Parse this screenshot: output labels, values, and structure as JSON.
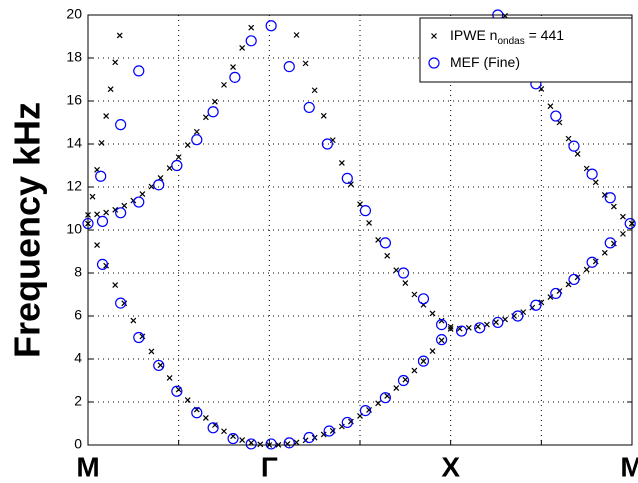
{
  "chart_data": {
    "type": "scatter",
    "ylabel": "Frequency kHz",
    "xlim": [
      0,
      3
    ],
    "ylim": [
      0,
      20
    ],
    "xticks": [
      {
        "value": 0,
        "label": "M"
      },
      {
        "value": 1,
        "label": "Γ"
      },
      {
        "value": 2,
        "label": "X"
      },
      {
        "value": 3,
        "label": "M"
      }
    ],
    "xgrid": [
      0.5,
      1.5,
      2.5
    ],
    "yticks": [
      0,
      2,
      4,
      6,
      8,
      10,
      12,
      14,
      16,
      18,
      20
    ],
    "grid": true,
    "legend": "upper right",
    "series": [
      {
        "name": "IPWE n",
        "name_sub": "ondas",
        "name_end": " = 441",
        "color": "#000000",
        "marker": "x",
        "x": [
          0,
          0.05,
          0.1,
          0.15,
          0.2,
          0.25,
          0.3,
          0.35,
          0.4,
          0.45,
          0.5,
          0.55,
          0.6,
          0.65,
          0.7,
          0.75,
          0.8,
          0.85,
          0.9,
          0.95,
          1,
          1.05,
          1.1,
          1.15,
          1.2,
          1.25,
          1.3,
          1.35,
          1.4,
          1.45,
          1.5,
          1.55,
          1.6,
          1.65,
          1.7,
          1.75,
          1.8,
          1.85,
          1.9,
          1.95,
          2,
          2.05,
          2.1,
          2.15,
          2.2,
          2.25,
          2.3,
          2.35,
          2.4,
          2.45,
          2.5,
          2.55,
          2.6,
          2.65,
          2.7,
          2.75,
          2.8,
          2.85,
          2.9,
          2.95,
          3,
          0,
          0.05,
          0.1,
          0.15,
          0.2,
          0.25,
          0.3,
          0.35,
          0.4,
          0.45,
          0.5,
          0.55,
          0.6,
          0.65,
          0.7,
          0.75,
          0.8,
          0.85,
          0.9,
          1.15,
          1.2,
          1.25,
          1.3,
          1.35,
          1.4,
          1.45,
          1.5,
          1.55,
          1.6,
          1.65,
          1.7,
          1.75,
          1.8,
          1.85,
          1.9,
          1.95,
          2,
          2.3,
          2.35,
          2.4,
          2.45,
          2.5,
          2.55,
          2.6,
          2.65,
          2.7,
          2.75,
          2.8,
          2.85,
          2.9,
          2.95,
          3,
          0.025,
          0.05,
          0.075,
          0.1,
          0.125,
          0.15,
          0.175
        ],
        "values": [
          10.3,
          9.3,
          8.34,
          7.44,
          6.59,
          5.79,
          5.05,
          4.35,
          3.71,
          3.12,
          2.58,
          2.09,
          1.65,
          1.26,
          0.93,
          0.64,
          0.41,
          0.23,
          0.1,
          0.03,
          0,
          0.01,
          0.05,
          0.12,
          0.22,
          0.34,
          0.49,
          0.66,
          0.86,
          1.09,
          1.35,
          1.63,
          1.94,
          2.28,
          2.65,
          3.04,
          3.46,
          3.9,
          4.37,
          4.87,
          5.4,
          5.41,
          5.45,
          5.51,
          5.6,
          5.71,
          5.84,
          6,
          6.18,
          6.39,
          6.63,
          6.88,
          7.16,
          7.47,
          7.8,
          8.16,
          8.54,
          8.94,
          9.37,
          9.82,
          10.3,
          10.7,
          10.73,
          10.81,
          10.94,
          11.13,
          11.37,
          11.67,
          12.02,
          12.42,
          12.88,
          13.39,
          13.95,
          14.57,
          15.24,
          15.97,
          16.75,
          17.58,
          18.47,
          19.41,
          19.07,
          17.75,
          16.5,
          15.31,
          14.18,
          13.12,
          12.13,
          11.2,
          10.33,
          9.54,
          8.8,
          8.13,
          7.53,
          7,
          6.52,
          6.12,
          5.78,
          5.5,
          19.96,
          19.08,
          18.22,
          17.38,
          16.56,
          15.76,
          15,
          14.25,
          13.54,
          12.86,
          12.22,
          11.63,
          11.09,
          10.62,
          10.3,
          11.55,
          12.8,
          14.05,
          15.3,
          16.55,
          17.8,
          19.05
        ]
      },
      {
        "name": "MEF (Fine)",
        "color": "#0000ff",
        "marker": "o",
        "x": [
          0,
          0.08,
          0.18,
          0.28,
          0.39,
          0.49,
          0.6,
          0.69,
          0.8,
          0.9,
          1.01,
          1.11,
          1.22,
          1.33,
          1.43,
          1.53,
          1.64,
          1.74,
          1.85,
          1.95,
          2.06,
          2.16,
          2.26,
          2.37,
          2.47,
          2.58,
          2.68,
          2.78,
          2.88,
          2.99,
          0.08,
          0.18,
          0.28,
          0.39,
          0.49,
          0.6,
          0.69,
          0.81,
          0.9,
          1.01,
          1.11,
          1.22,
          1.32,
          1.43,
          1.53,
          1.64,
          1.74,
          1.85,
          1.95,
          2.26,
          2.47,
          2.58,
          2.68,
          2.78,
          2.88,
          0.07,
          0.18,
          0.28
        ],
        "values": [
          10.3,
          8.4,
          6.6,
          5,
          3.7,
          2.5,
          1.5,
          0.8,
          0.3,
          0.05,
          0.05,
          0.1,
          0.35,
          0.65,
          1.05,
          1.6,
          2.2,
          3,
          3.9,
          4.9,
          5.3,
          5.45,
          5.7,
          6,
          6.5,
          7.05,
          7.7,
          8.5,
          9.4,
          10.3,
          10.4,
          10.8,
          11.3,
          12.1,
          13,
          14.2,
          15.5,
          17.1,
          18.8,
          19.5,
          17.6,
          15.7,
          14,
          12.4,
          10.9,
          9.4,
          8,
          6.8,
          5.6,
          20,
          16.8,
          15.3,
          13.9,
          12.6,
          11.5,
          12.5,
          14.9,
          17.4
        ]
      }
    ]
  }
}
